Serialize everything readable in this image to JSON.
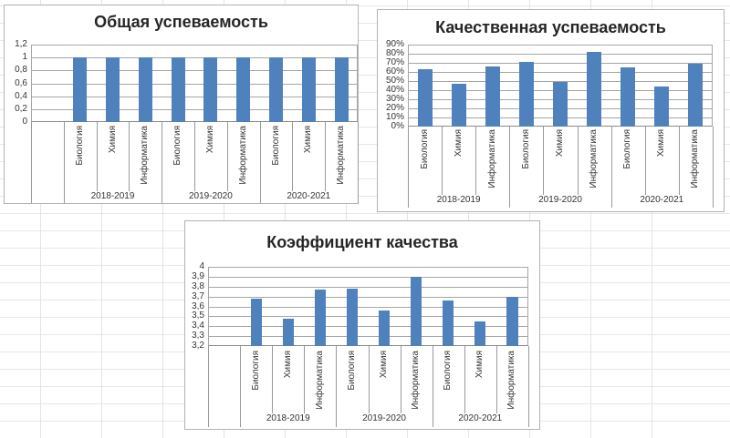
{
  "chart_data": [
    {
      "type": "bar",
      "title": "Общая успеваемость",
      "xlabel": "",
      "ylabel": "",
      "ylim": [
        0,
        1.2
      ],
      "y_tick_step": 0.2,
      "y_tick_labels": [
        "1,2",
        "1",
        "0,8",
        "0,6",
        "0,4",
        "0,2",
        "0"
      ],
      "grid": true,
      "legend": "none",
      "bar_color": "#4f81bd",
      "leading_empty_slot": true,
      "groups": [
        {
          "label": "2018-2019",
          "categories": [
            "Биология",
            "Химия",
            "Информатика"
          ],
          "values": [
            1,
            1,
            1
          ]
        },
        {
          "label": "2019-2020",
          "categories": [
            "Биология",
            "Химия",
            "Информатика"
          ],
          "values": [
            1,
            1,
            1
          ]
        },
        {
          "label": "2020-2021",
          "categories": [
            "Биология",
            "Химия",
            "Информатика"
          ],
          "values": [
            1,
            1,
            1
          ]
        }
      ]
    },
    {
      "type": "bar",
      "title": "Качественная успеваемость",
      "xlabel": "",
      "ylabel": "",
      "ylim": [
        0,
        90
      ],
      "y_tick_step": 10,
      "y_tick_labels": [
        "90%",
        "80%",
        "70%",
        "60%",
        "50%",
        "40%",
        "30%",
        "20%",
        "10%",
        "0%"
      ],
      "grid": true,
      "legend": "none",
      "bar_color": "#4f81bd",
      "leading_empty_slot": false,
      "groups": [
        {
          "label": "2018-2019",
          "categories": [
            "Биология",
            "Химия",
            "Информатика"
          ],
          "values": [
            63,
            47,
            66
          ]
        },
        {
          "label": "2019-2020",
          "categories": [
            "Биология",
            "Химия",
            "Информатика"
          ],
          "values": [
            71,
            49,
            82
          ]
        },
        {
          "label": "2020-2021",
          "categories": [
            "Биология",
            "Химия",
            "Информатика"
          ],
          "values": [
            65,
            44,
            69
          ]
        }
      ]
    },
    {
      "type": "bar",
      "title": "Коэффициент качества",
      "xlabel": "",
      "ylabel": "",
      "ylim": [
        3.2,
        4
      ],
      "y_tick_step": 0.1,
      "y_tick_labels": [
        "4",
        "3,9",
        "3,8",
        "3,7",
        "3,6",
        "3,5",
        "3,4",
        "3,3",
        "3,2"
      ],
      "grid": true,
      "legend": "none",
      "bar_color": "#4f81bd",
      "leading_empty_slot": true,
      "groups": [
        {
          "label": "2018-2019",
          "categories": [
            "Биология",
            "Химия",
            "Информатика"
          ],
          "values": [
            3.68,
            3.48,
            3.77
          ]
        },
        {
          "label": "2019-2020",
          "categories": [
            "Биология",
            "Химия",
            "Информатика"
          ],
          "values": [
            3.78,
            3.56,
            3.9
          ]
        },
        {
          "label": "2020-2021",
          "categories": [
            "Биология",
            "Химия",
            "Информатика"
          ],
          "values": [
            3.66,
            3.45,
            3.7
          ]
        }
      ]
    }
  ]
}
